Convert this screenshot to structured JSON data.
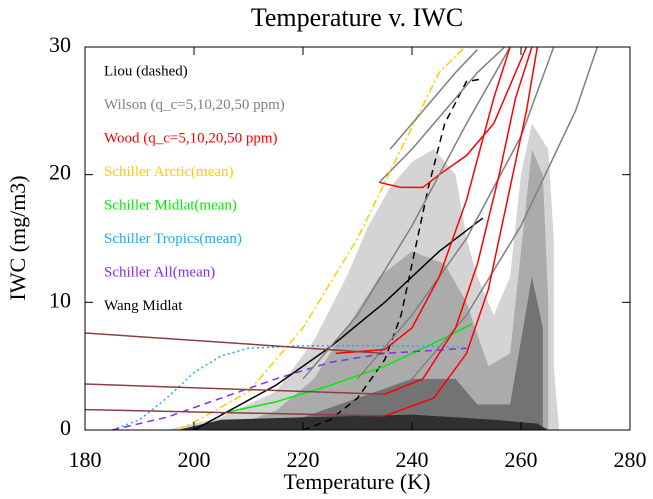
{
  "chart_data": {
    "type": "line",
    "title": "Temperature v. IWC",
    "x_label": "Temperature (K)",
    "y_label": "IWC (mg/m3)",
    "xlim": [
      180,
      280
    ],
    "xticks": [
      180,
      200,
      220,
      240,
      260,
      280
    ],
    "ylim": [
      0,
      30
    ],
    "yticks": [
      0,
      10,
      20,
      30
    ],
    "contours": [
      {
        "color": "#d4d4d4",
        "x": [
          195,
          205,
          215,
          222,
          228,
          232,
          236,
          240,
          244,
          248,
          250,
          252,
          255,
          258,
          260,
          262,
          265,
          266,
          266,
          267
        ],
        "y": [
          0,
          1,
          3,
          7,
          12,
          16,
          19,
          21,
          22,
          20,
          15,
          12,
          9,
          12,
          20,
          24,
          22,
          15,
          5,
          0
        ]
      },
      {
        "color": "#ababab",
        "x": [
          205,
          215,
          222,
          228,
          234,
          240,
          246,
          250,
          254,
          258,
          260,
          262,
          264,
          265,
          265
        ],
        "y": [
          0,
          1.5,
          4,
          8,
          12,
          14,
          13,
          10,
          5,
          6,
          14,
          22,
          20,
          10,
          0
        ]
      },
      {
        "color": "#737373",
        "x": [
          210,
          220,
          230,
          240,
          248,
          252,
          258,
          262,
          264,
          264
        ],
        "y": [
          0,
          1,
          2.5,
          4,
          4,
          2,
          2,
          12,
          8,
          0
        ]
      },
      {
        "color": "#303030",
        "x": [
          197,
          205,
          220,
          240,
          255,
          263,
          265
        ],
        "y": [
          0,
          0.8,
          1,
          1.2,
          0.8,
          0.5,
          0
        ]
      }
    ],
    "series": [
      {
        "name": "Liou (dashed)",
        "color": "#000000",
        "style": "dashed",
        "x": [
          220,
          225,
          230,
          235,
          238,
          240,
          243,
          246,
          250,
          253
        ],
        "y": [
          0,
          0.8,
          2.5,
          5.5,
          9,
          13,
          19,
          24,
          27.3,
          27.5
        ]
      },
      {
        "name": "Wilson (q_c=5,10,20,50 ppm)",
        "color": "#808080",
        "style": "solid",
        "x": [
          234,
          240,
          246,
          252,
          257
        ],
        "y": [
          19.4,
          22,
          25,
          28,
          30
        ]
      },
      {
        "name": "Wood (q_c=5,10,20,50 ppm)",
        "color": "#ff0000",
        "style": "solid",
        "x": [
          234,
          238,
          242,
          245,
          250,
          255,
          258,
          261
        ],
        "y": [
          19.4,
          19,
          19,
          20,
          21.5,
          24,
          27,
          30
        ]
      },
      {
        "name": "Schiller Arctic(mean)",
        "color": "#ffcc00",
        "style": "dashdot",
        "x": [
          197,
          200,
          210,
          220,
          230,
          238,
          245,
          249.7
        ],
        "y": [
          0,
          0.6,
          3,
          8,
          15,
          22,
          28,
          30
        ]
      },
      {
        "name": "Schiller Midlat(mean)",
        "color": "#00ee00",
        "style": "solid",
        "x": [
          205,
          215,
          225,
          235,
          245,
          251
        ],
        "y": [
          1.3,
          2.2,
          3.5,
          5,
          7,
          8.3
        ]
      },
      {
        "name": "Schiller Tropics(mean)",
        "color": "#22aaee",
        "style": "dotted",
        "x": [
          185,
          190,
          195,
          200,
          205,
          210,
          220,
          235,
          249
        ],
        "y": [
          0,
          0.8,
          2.5,
          4.5,
          5.8,
          6.4,
          6.6,
          6.6,
          6.5
        ]
      },
      {
        "name": "Schiller All(mean)",
        "color": "#8a2be2",
        "style": "dashed",
        "x": [
          185,
          195,
          205,
          215,
          225,
          235,
          250
        ],
        "y": [
          0,
          1,
          2.5,
          4,
          5.3,
          6,
          6.4
        ]
      },
      {
        "name": "Wang Midlat",
        "color": "#000000",
        "style": "solid",
        "x": [
          200,
          215,
          225,
          235,
          245,
          253
        ],
        "y": [
          0,
          3.5,
          6.5,
          10,
          14,
          16.6
        ]
      },
      {
        "color": "#808080",
        "style": "solid",
        "x": [
          220,
          230,
          240,
          250,
          258
        ],
        "y": [
          4,
          9,
          16,
          24,
          30
        ]
      },
      {
        "color": "#808080",
        "style": "solid",
        "x": [
          230,
          240,
          250,
          260,
          266
        ],
        "y": [
          4,
          9,
          15,
          23,
          30
        ]
      },
      {
        "color": "#808080",
        "style": "solid",
        "x": [
          240,
          250,
          260,
          270,
          274
        ],
        "y": [
          4,
          9,
          16,
          25,
          30
        ]
      },
      {
        "color": "#808080",
        "style": "solid",
        "x": [
          236,
          242,
          248,
          252
        ],
        "y": [
          22,
          25,
          28,
          29.8
        ]
      },
      {
        "color": "#ff0000",
        "style": "solid",
        "x": [
          226,
          235,
          240,
          245,
          250,
          255,
          258
        ],
        "y": [
          6,
          6.3,
          8,
          12,
          18,
          26,
          30
        ]
      },
      {
        "color": "#ff0000",
        "style": "solid",
        "x": [
          235,
          242,
          248,
          252,
          256,
          259,
          262
        ],
        "y": [
          2.8,
          4,
          8,
          13,
          20,
          26,
          30
        ]
      },
      {
        "color": "#ff0000",
        "style": "solid",
        "x": [
          235,
          244,
          250,
          254,
          258,
          261,
          263
        ],
        "y": [
          1.1,
          2.5,
          6,
          11,
          19,
          25,
          30
        ]
      },
      {
        "color": "#8b4040",
        "style": "solid",
        "x": [
          180,
          235
        ],
        "y": [
          7.6,
          6
        ]
      },
      {
        "color": "#8b4040",
        "style": "solid",
        "x": [
          180,
          235
        ],
        "y": [
          3.6,
          2.8
        ]
      },
      {
        "color": "#8b4040",
        "style": "solid",
        "x": [
          180,
          235
        ],
        "y": [
          1.6,
          1.1
        ]
      }
    ]
  }
}
